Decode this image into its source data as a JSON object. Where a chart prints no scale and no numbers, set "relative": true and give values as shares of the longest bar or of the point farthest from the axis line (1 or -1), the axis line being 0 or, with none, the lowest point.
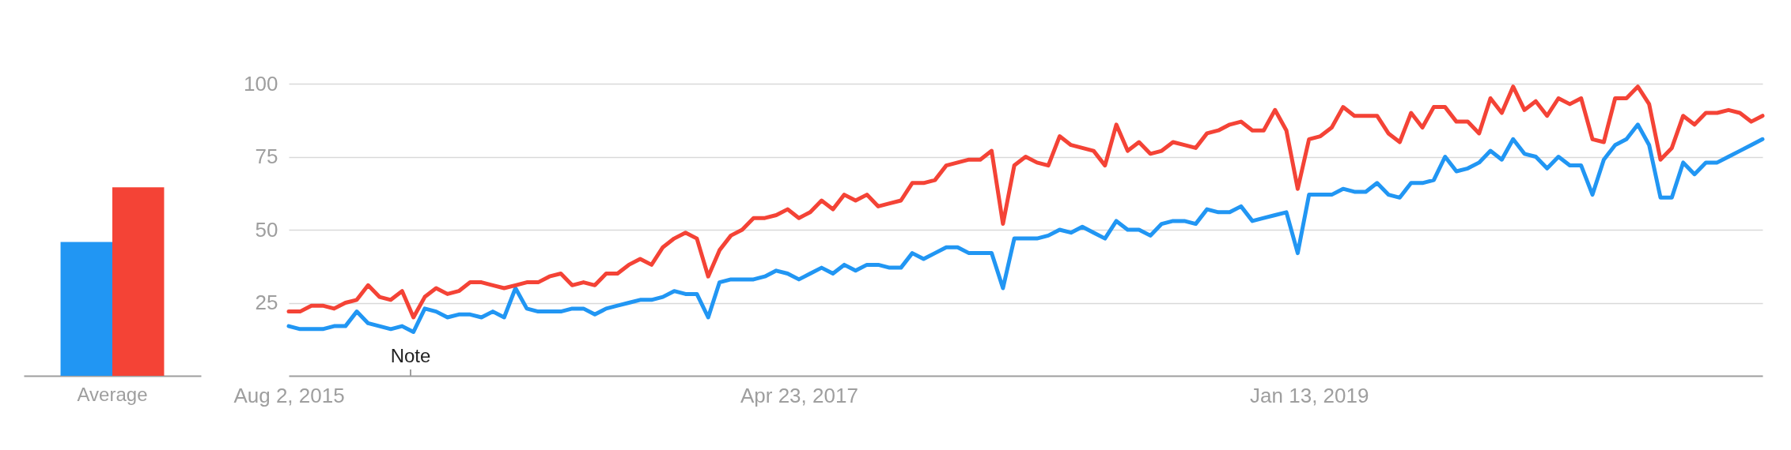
{
  "chart_data": [
    {
      "type": "bar",
      "categories": [
        "Average"
      ],
      "relative": true,
      "series": [
        {
          "color": "#2196f3",
          "values": [
            0.71
          ]
        },
        {
          "color": "#f44336",
          "values": [
            1
          ]
        }
      ]
    },
    {
      "type": "line",
      "grid": "y",
      "ylim": [
        0,
        100
      ],
      "yticks": [
        25,
        50,
        75,
        100
      ],
      "xlim": [
        "2015-08-02",
        "2020-07-26"
      ],
      "xticks": [
        {
          "value": "2015-08-02",
          "label": "Aug 2, 2015"
        },
        {
          "value": "2017-04-23",
          "label": "Apr 23, 2017"
        },
        {
          "value": "2019-01-13",
          "label": "Jan 13, 2019"
        }
      ],
      "annotations": [
        "Note"
      ],
      "x": [
        "2015-08-02",
        "2015-08-16",
        "2015-08-30",
        "2015-09-13",
        "2015-09-27",
        "2015-10-11",
        "2015-10-25",
        "2015-11-08",
        "2015-11-22",
        "2015-12-06",
        "2015-12-20",
        "2016-01-03",
        "2016-01-17",
        "2016-01-31",
        "2016-02-14",
        "2016-02-28",
        "2016-03-13",
        "2016-03-27",
        "2016-04-10",
        "2016-04-24",
        "2016-05-08",
        "2016-05-22",
        "2016-06-05",
        "2016-06-19",
        "2016-07-03",
        "2016-07-17",
        "2016-07-31",
        "2016-08-14",
        "2016-08-28",
        "2016-09-11",
        "2016-09-25",
        "2016-10-09",
        "2016-10-23",
        "2016-11-06",
        "2016-11-20",
        "2016-12-04",
        "2016-12-18",
        "2017-01-01",
        "2017-01-15",
        "2017-01-29",
        "2017-02-12",
        "2017-02-26",
        "2017-03-12",
        "2017-03-26",
        "2017-04-09",
        "2017-04-23",
        "2017-05-07",
        "2017-05-21",
        "2017-06-04",
        "2017-06-18",
        "2017-07-02",
        "2017-07-16",
        "2017-07-30",
        "2017-08-13",
        "2017-08-27",
        "2017-09-10",
        "2017-09-24",
        "2017-10-08",
        "2017-10-22",
        "2017-11-05",
        "2017-11-19",
        "2017-12-03",
        "2017-12-17",
        "2017-12-31",
        "2018-01-14",
        "2018-01-28",
        "2018-02-11",
        "2018-02-25",
        "2018-03-11",
        "2018-03-25",
        "2018-04-08",
        "2018-04-22",
        "2018-05-06",
        "2018-05-20",
        "2018-06-03",
        "2018-06-17",
        "2018-07-01",
        "2018-07-15",
        "2018-07-29",
        "2018-08-12",
        "2018-08-26",
        "2018-09-09",
        "2018-09-23",
        "2018-10-07",
        "2018-10-21",
        "2018-11-04",
        "2018-11-18",
        "2018-12-02",
        "2018-12-16",
        "2018-12-30",
        "2019-01-13",
        "2019-01-27",
        "2019-02-10",
        "2019-02-24",
        "2019-03-10",
        "2019-03-24",
        "2019-04-07",
        "2019-04-21",
        "2019-05-05",
        "2019-05-19",
        "2019-06-02",
        "2019-06-16",
        "2019-06-30",
        "2019-07-14",
        "2019-07-28",
        "2019-08-11",
        "2019-08-25",
        "2019-09-08",
        "2019-09-22",
        "2019-10-06",
        "2019-10-20",
        "2019-11-03",
        "2019-11-17",
        "2019-12-01",
        "2019-12-15",
        "2019-12-29",
        "2020-01-12",
        "2020-01-26",
        "2020-02-09",
        "2020-02-23",
        "2020-03-08",
        "2020-03-22",
        "2020-04-05",
        "2020-04-19",
        "2020-05-03",
        "2020-05-17",
        "2020-05-31",
        "2020-06-14",
        "2020-06-28",
        "2020-07-12",
        "2020-07-26"
      ],
      "series": [
        {
          "color": "#2196f3",
          "values": [
            17,
            16,
            16,
            16,
            17,
            17,
            22,
            18,
            17,
            16,
            17,
            15,
            23,
            22,
            20,
            21,
            21,
            20,
            22,
            20,
            30,
            23,
            22,
            22,
            22,
            23,
            23,
            21,
            23,
            24,
            25,
            26,
            26,
            27,
            29,
            28,
            28,
            20,
            32,
            33,
            33,
            33,
            34,
            36,
            35,
            33,
            35,
            37,
            35,
            38,
            36,
            38,
            38,
            37,
            37,
            42,
            40,
            42,
            44,
            44,
            42,
            42,
            42,
            30,
            47,
            47,
            47,
            48,
            50,
            49,
            51,
            49,
            47,
            53,
            50,
            50,
            48,
            52,
            53,
            53,
            52,
            57,
            56,
            56,
            58,
            53,
            54,
            55,
            56,
            42,
            62,
            62,
            62,
            64,
            63,
            63,
            66,
            62,
            61,
            66,
            66,
            67,
            75,
            70,
            71,
            73,
            77,
            74,
            81,
            76,
            75,
            71,
            75,
            72,
            72,
            62,
            74,
            79,
            81,
            86,
            79,
            61,
            61,
            73,
            69,
            73,
            73,
            75,
            77,
            79,
            81
          ]
        },
        {
          "color": "#f44336",
          "values": [
            22,
            22,
            24,
            24,
            23,
            25,
            26,
            31,
            27,
            26,
            29,
            20,
            27,
            30,
            28,
            29,
            32,
            32,
            31,
            30,
            31,
            32,
            32,
            34,
            35,
            31,
            32,
            31,
            35,
            35,
            38,
            40,
            38,
            44,
            47,
            49,
            47,
            34,
            43,
            48,
            50,
            54,
            54,
            55,
            57,
            54,
            56,
            60,
            57,
            62,
            60,
            62,
            58,
            59,
            60,
            66,
            66,
            67,
            72,
            73,
            74,
            74,
            77,
            52,
            72,
            75,
            73,
            72,
            82,
            79,
            78,
            77,
            72,
            86,
            77,
            80,
            76,
            77,
            80,
            79,
            78,
            83,
            84,
            86,
            87,
            84,
            84,
            91,
            84,
            64,
            81,
            82,
            85,
            92,
            89,
            89,
            89,
            83,
            80,
            90,
            85,
            92,
            92,
            87,
            87,
            83,
            95,
            90,
            99,
            91,
            94,
            89,
            95,
            93,
            95,
            81,
            80,
            95,
            95,
            99,
            93,
            74,
            78,
            89,
            86,
            90,
            90,
            91,
            90,
            87,
            89
          ]
        }
      ]
    }
  ]
}
